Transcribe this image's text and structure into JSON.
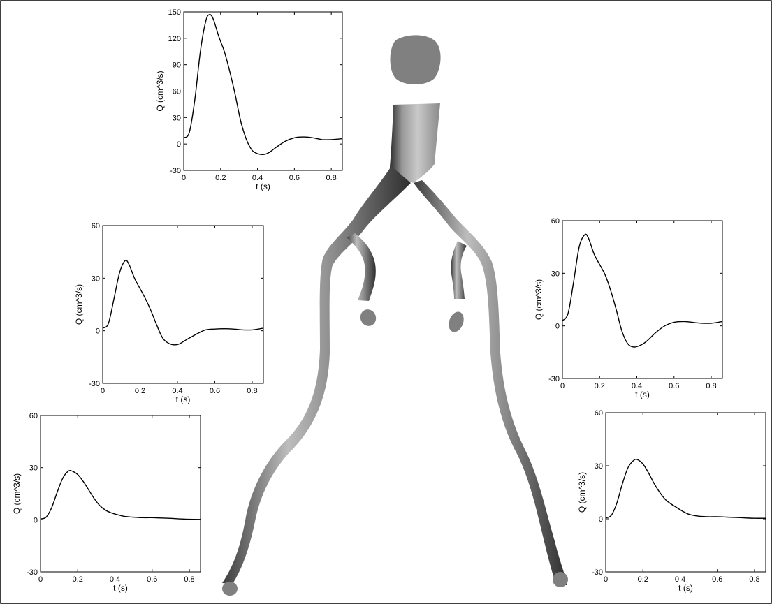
{
  "figure": {
    "inlet_shape": "irregular-disc",
    "colors": {
      "vessel_light": "#d4d4d4",
      "vessel_dark": "#4a4a4a",
      "outlet": "#808080",
      "curve": "#000000"
    }
  },
  "chart_data": [
    {
      "id": "inlet",
      "type": "line",
      "xlabel": "t (s)",
      "ylabel": "Q (cm^3/s)",
      "xlim": [
        0,
        0.86
      ],
      "ylim": [
        -30,
        150
      ],
      "xticks": [
        0,
        0.2,
        0.4,
        0.6,
        0.8
      ],
      "yticks": [
        -30,
        0,
        30,
        60,
        90,
        120,
        150
      ],
      "xtick_labels": [
        "0",
        "0.2",
        "0.4",
        "0.6",
        "0.8"
      ],
      "ytick_labels": [
        "-30",
        "0",
        "30",
        "60",
        "90",
        "120",
        "150"
      ],
      "series": [
        {
          "x": [
            0,
            0.03,
            0.06,
            0.09,
            0.12,
            0.14,
            0.16,
            0.19,
            0.22,
            0.25,
            0.28,
            0.31,
            0.34,
            0.37,
            0.4,
            0.43,
            0.46,
            0.5,
            0.55,
            0.6,
            0.65,
            0.7,
            0.75,
            0.8,
            0.86
          ],
          "y": [
            7,
            13,
            50,
            105,
            140,
            147,
            142,
            122,
            105,
            82,
            55,
            25,
            5,
            -7,
            -11,
            -12,
            -10,
            -4,
            3,
            7,
            8,
            7,
            5,
            5,
            6
          ]
        }
      ]
    },
    {
      "id": "upper-left",
      "type": "line",
      "xlabel": "t (s)",
      "ylabel": "Q (cm^3/s)",
      "xlim": [
        0,
        0.86
      ],
      "ylim": [
        -30,
        60
      ],
      "xticks": [
        0,
        0.2,
        0.4,
        0.6,
        0.8
      ],
      "yticks": [
        -30,
        0,
        30,
        60
      ],
      "xtick_labels": [
        "0",
        "0.2",
        "0.4",
        "0.6",
        "0.8"
      ],
      "ytick_labels": [
        "-30",
        "0",
        "30",
        "60"
      ],
      "series": [
        {
          "x": [
            0,
            0.03,
            0.06,
            0.09,
            0.12,
            0.14,
            0.17,
            0.2,
            0.23,
            0.26,
            0.29,
            0.32,
            0.35,
            0.38,
            0.41,
            0.45,
            0.5,
            0.55,
            0.6,
            0.65,
            0.7,
            0.75,
            0.8,
            0.86
          ],
          "y": [
            1.5,
            4,
            18,
            33,
            40,
            38,
            30,
            24,
            18,
            11,
            3,
            -4,
            -7,
            -8,
            -7.5,
            -5,
            -2,
            0.5,
            1,
            1.2,
            1,
            0.5,
            0.5,
            1.5
          ]
        }
      ]
    },
    {
      "id": "upper-right",
      "type": "line",
      "xlabel": "t (s)",
      "ylabel": "Q (cm^3/s)",
      "xlim": [
        0,
        0.86
      ],
      "ylim": [
        -30,
        60
      ],
      "xticks": [
        0,
        0.2,
        0.4,
        0.6,
        0.8
      ],
      "yticks": [
        -30,
        0,
        30,
        60
      ],
      "xtick_labels": [
        "0",
        "0.2",
        "0.4",
        "0.6",
        "0.8"
      ],
      "ytick_labels": [
        "-30",
        "0",
        "30",
        "60"
      ],
      "series": [
        {
          "x": [
            0,
            0.03,
            0.06,
            0.09,
            0.12,
            0.14,
            0.17,
            0.2,
            0.23,
            0.26,
            0.29,
            0.32,
            0.35,
            0.38,
            0.41,
            0.45,
            0.5,
            0.55,
            0.6,
            0.65,
            0.7,
            0.75,
            0.8,
            0.86
          ],
          "y": [
            3,
            7,
            25,
            45,
            52,
            50,
            41,
            35,
            29,
            20,
            9,
            -3,
            -10,
            -12,
            -11.5,
            -9,
            -4,
            0,
            2,
            2.5,
            2,
            1.5,
            1.5,
            2.5
          ]
        }
      ]
    },
    {
      "id": "lower-left",
      "type": "line",
      "xlabel": "t (s)",
      "ylabel": "Q (cm^3/s)",
      "xlim": [
        0,
        0.86
      ],
      "ylim": [
        -30,
        60
      ],
      "xticks": [
        0,
        0.2,
        0.4,
        0.6,
        0.8
      ],
      "yticks": [
        -30,
        0,
        30,
        60
      ],
      "xtick_labels": [
        "0",
        "0.2",
        "0.4",
        "0.6",
        "0.8"
      ],
      "ytick_labels": [
        "-30",
        "0",
        "30",
        "60"
      ],
      "series": [
        {
          "x": [
            0,
            0.03,
            0.06,
            0.09,
            0.12,
            0.15,
            0.17,
            0.2,
            0.23,
            0.26,
            0.29,
            0.32,
            0.35,
            0.38,
            0.41,
            0.45,
            0.5,
            0.55,
            0.6,
            0.65,
            0.7,
            0.75,
            0.8,
            0.86
          ],
          "y": [
            0.5,
            1.5,
            7,
            16,
            24,
            28,
            28,
            26,
            22,
            17,
            12,
            8,
            5.5,
            4,
            3,
            2,
            1.5,
            1.2,
            1.2,
            1,
            0.8,
            0.5,
            0.3,
            0.2
          ]
        }
      ]
    },
    {
      "id": "lower-right",
      "type": "line",
      "xlabel": "t (s)",
      "ylabel": "Q (cm^3/s)",
      "xlim": [
        0,
        0.86
      ],
      "ylim": [
        -30,
        60
      ],
      "xticks": [
        0,
        0.2,
        0.4,
        0.6,
        0.8
      ],
      "yticks": [
        -30,
        0,
        30,
        60
      ],
      "xtick_labels": [
        "0",
        "0.2",
        "0.4",
        "0.6",
        "0.8"
      ],
      "ytick_labels": [
        "-30",
        "0",
        "30",
        "60"
      ],
      "series": [
        {
          "x": [
            0,
            0.03,
            0.06,
            0.09,
            0.12,
            0.15,
            0.17,
            0.2,
            0.23,
            0.26,
            0.29,
            0.32,
            0.35,
            0.38,
            0.41,
            0.45,
            0.5,
            0.55,
            0.6,
            0.65,
            0.7,
            0.75,
            0.8,
            0.86
          ],
          "y": [
            0.5,
            2,
            9,
            20,
            29,
            33,
            33.5,
            31,
            26,
            20,
            15,
            11,
            8.5,
            6.5,
            4.5,
            2.5,
            1.5,
            1.2,
            1.2,
            1,
            0.8,
            0.5,
            0.3,
            0.3
          ]
        }
      ]
    }
  ]
}
